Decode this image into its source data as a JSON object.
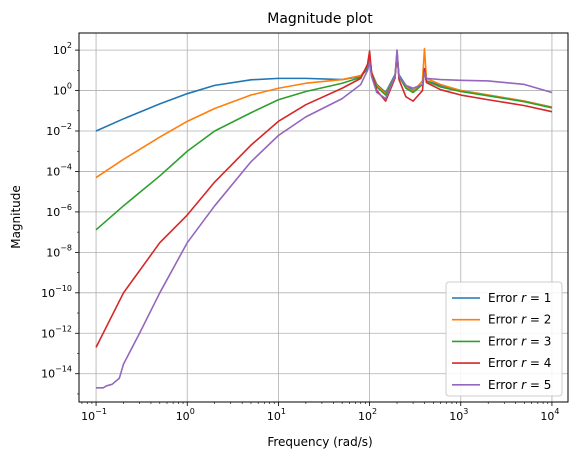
{
  "chart_data": {
    "type": "line",
    "title": "Magnitude plot",
    "xlabel": "Frequency (rad/s)",
    "ylabel": "Magnitude",
    "xscale": "log",
    "yscale": "log",
    "xlim": [
      0.065,
      15000
    ],
    "ylim": [
      4e-16,
      700
    ],
    "grid": true,
    "legend_position": "bottom-right",
    "xticks": [
      {
        "base": "10",
        "exp": "−1",
        "value": 0.1
      },
      {
        "base": "10",
        "exp": "0",
        "value": 1
      },
      {
        "base": "10",
        "exp": "1",
        "value": 10
      },
      {
        "base": "10",
        "exp": "2",
        "value": 100
      },
      {
        "base": "10",
        "exp": "3",
        "value": 1000
      },
      {
        "base": "10",
        "exp": "4",
        "value": 10000
      }
    ],
    "yticks": [
      {
        "base": "10",
        "exp": "−14",
        "value": 1e-14
      },
      {
        "base": "10",
        "exp": "−12",
        "value": 1e-12
      },
      {
        "base": "10",
        "exp": "−10",
        "value": 1e-10
      },
      {
        "base": "10",
        "exp": "−8",
        "value": 1e-08
      },
      {
        "base": "10",
        "exp": "−6",
        "value": 1e-06
      },
      {
        "base": "10",
        "exp": "−4",
        "value": 0.0001
      },
      {
        "base": "10",
        "exp": "−2",
        "value": 0.01
      },
      {
        "base": "10",
        "exp": "0",
        "value": 1
      },
      {
        "base": "10",
        "exp": "2",
        "value": 100
      }
    ],
    "series": [
      {
        "prefix": "Error ",
        "var": "r",
        "suffix": " = 1",
        "color": "#1f77b4",
        "x": [
          0.1,
          0.2,
          0.5,
          1,
          2,
          5,
          10,
          20,
          50,
          80,
          95,
          100,
          105,
          120,
          150,
          190,
          200,
          210,
          250,
          300,
          380,
          400,
          420,
          600,
          1000,
          2000,
          5000,
          10000
        ],
        "y": [
          0.01,
          0.04,
          0.22,
          0.7,
          1.8,
          3.4,
          4.0,
          4.0,
          3.5,
          5.0,
          12.0,
          35.0,
          8.0,
          2.0,
          0.8,
          6.0,
          40.0,
          6.0,
          1.8,
          1.0,
          2.0,
          10.0,
          3.0,
          1.8,
          1.0,
          0.6,
          0.3,
          0.15
        ]
      },
      {
        "prefix": "Error ",
        "var": "r",
        "suffix": " = 2",
        "color": "#ff7f0e",
        "x": [
          0.1,
          0.2,
          0.5,
          1,
          2,
          5,
          10,
          20,
          50,
          80,
          95,
          100,
          105,
          120,
          150,
          190,
          200,
          210,
          250,
          300,
          380,
          400,
          420,
          600,
          1000,
          2000,
          5000,
          10000
        ],
        "y": [
          5e-05,
          0.0004,
          0.005,
          0.03,
          0.13,
          0.6,
          1.3,
          2.3,
          3.5,
          5.5,
          15.0,
          50.0,
          8.0,
          1.8,
          0.7,
          5.0,
          60.0,
          5.0,
          1.5,
          0.9,
          3.0,
          120.0,
          4.0,
          2.0,
          1.0,
          0.6,
          0.3,
          0.15
        ]
      },
      {
        "prefix": "Error ",
        "var": "r",
        "suffix": " = 3",
        "color": "#2ca02c",
        "x": [
          0.1,
          0.2,
          0.5,
          1,
          2,
          5,
          10,
          20,
          50,
          80,
          95,
          100,
          105,
          120,
          150,
          190,
          200,
          210,
          250,
          300,
          380,
          400,
          420,
          600,
          1000,
          2000,
          5000,
          10000
        ],
        "y": [
          1.3e-07,
          2e-06,
          6e-05,
          0.001,
          0.01,
          0.08,
          0.35,
          0.9,
          2.3,
          4.5,
          15.0,
          55.0,
          8.0,
          1.5,
          0.6,
          5.0,
          70.0,
          5.0,
          1.3,
          0.8,
          2.0,
          12.0,
          3.0,
          1.5,
          0.9,
          0.55,
          0.28,
          0.14
        ]
      },
      {
        "prefix": "Error ",
        "var": "r",
        "suffix": " = 4",
        "color": "#d62728",
        "x": [
          0.1,
          0.2,
          0.5,
          1,
          2,
          5,
          10,
          20,
          50,
          80,
          95,
          100,
          105,
          120,
          150,
          190,
          200,
          210,
          250,
          300,
          380,
          400,
          420,
          600,
          1000,
          2000,
          5000,
          10000
        ],
        "y": [
          2e-13,
          1e-10,
          3e-08,
          7e-07,
          3e-05,
          0.002,
          0.03,
          0.2,
          1.3,
          4.0,
          20.0,
          90.0,
          8.0,
          1.0,
          0.3,
          4.0,
          90.0,
          3.5,
          0.5,
          0.3,
          1.0,
          12.0,
          2.5,
          1.1,
          0.6,
          0.35,
          0.18,
          0.09
        ]
      },
      {
        "prefix": "Error ",
        "var": "r",
        "suffix": " = 5",
        "color": "#9467bd",
        "x": [
          0.1,
          0.12,
          0.13,
          0.15,
          0.18,
          0.2,
          0.3,
          0.5,
          1,
          2,
          5,
          10,
          20,
          50,
          80,
          95,
          100,
          105,
          120,
          150,
          190,
          200,
          210,
          250,
          300,
          380,
          400,
          420,
          600,
          1000,
          2000,
          5000,
          10000
        ],
        "y": [
          2e-15,
          2e-15,
          2.5e-15,
          3e-15,
          6e-15,
          3e-14,
          1e-12,
          1e-10,
          3e-08,
          2e-06,
          0.0003,
          0.006,
          0.05,
          0.4,
          2.0,
          10.0,
          25.0,
          5.0,
          0.8,
          0.4,
          5.0,
          100.0,
          5.0,
          1.8,
          1.3,
          2.0,
          8.0,
          4.0,
          3.5,
          3.2,
          3.0,
          2.0,
          0.8
        ]
      }
    ]
  }
}
